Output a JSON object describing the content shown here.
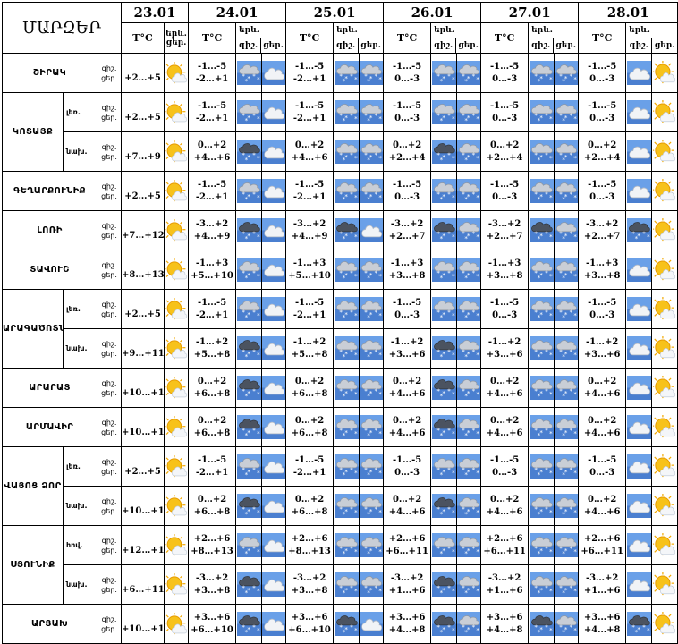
{
  "header": {
    "regions_title": "ՄԱՐԶԵՐ",
    "dates": [
      "23.01",
      "24.01",
      "25.01",
      "26.01",
      "27.01",
      "28.01"
    ],
    "temp_label": "T°C",
    "weather_label": "երև.",
    "night_label": "գիշ.",
    "day_label": "ցեր."
  },
  "rows": [
    {
      "region": "ՇԻՐԱԿ",
      "sub": "",
      "d0": "+2…+5",
      "n": [
        "-1…-5",
        "-1…-5",
        "-1…-5",
        "-1…-5",
        "-1…-5"
      ],
      "dd": [
        "-2…+1",
        "-2…+1",
        "0…-3",
        "0…-3",
        "0…-3"
      ]
    },
    {
      "region": "ԿՈՏԱՅՔ",
      "sub": "լեռ.",
      "d0": "+2…+5",
      "n": [
        "-1…-5",
        "-1…-5",
        "-1…-5",
        "-1…-5",
        "-1…-5"
      ],
      "dd": [
        "-2…+1",
        "-2…+1",
        "0…-3",
        "0…-3",
        "0…-3"
      ]
    },
    {
      "region": "",
      "sub": "նախ.",
      "d0": "+7…+9",
      "n": [
        "0…+2",
        "0…+2",
        "0…+2",
        "0…+2",
        "0…+2"
      ],
      "dd": [
        "+4…+6",
        "+4…+6",
        "+2…+4",
        "+2…+4",
        "+2…+4"
      ]
    },
    {
      "region": "ԳԵՂԱՐՔՈՒՆԻՔ",
      "sub": "",
      "d0": "+2…+5",
      "n": [
        "-1…-5",
        "-1…-5",
        "-1…-5",
        "-1…-5",
        "-1…-5"
      ],
      "dd": [
        "-2…+1",
        "-2…+1",
        "0…-3",
        "0…-3",
        "0…-3"
      ]
    },
    {
      "region": "ԼՈՌԻ",
      "sub": "",
      "d0": "+7…+12",
      "n": [
        "-3…+2",
        "-3…+2",
        "-3…+2",
        "-3…+2",
        "-3…+2"
      ],
      "dd": [
        "+4…+9",
        "+4…+9",
        "+2…+7",
        "+2…+7",
        "+2…+7"
      ]
    },
    {
      "region": "ՏԱՎՈՒՇ",
      "sub": "",
      "d0": "+8…+13",
      "n": [
        "-1…+3",
        "-1…+3",
        "-1…+3",
        "-1…+3",
        "-1…+3"
      ],
      "dd": [
        "+5…+10",
        "+5…+10",
        "+3…+8",
        "+3…+8",
        "+3…+8"
      ]
    },
    {
      "region": "ԱՐԱԳԱԾՈՏՆ",
      "sub": "լեռ.",
      "d0": "+2…+5",
      "n": [
        "-1…-5",
        "-1…-5",
        "-1…-5",
        "-1…-5",
        "-1…-5"
      ],
      "dd": [
        "-2…+1",
        "-2…+1",
        "0…-3",
        "0…-3",
        "0…-3"
      ]
    },
    {
      "region": "",
      "sub": "նախ.",
      "d0": "+9…+11",
      "n": [
        "-1…+2",
        "-1…+2",
        "-1…+2",
        "-1…+2",
        "-1…+2"
      ],
      "dd": [
        "+5…+8",
        "+5…+8",
        "+3…+6",
        "+3…+6",
        "+3…+6"
      ]
    },
    {
      "region": "ԱՐԱՐԱՏ",
      "sub": "",
      "d0": "+10…+12",
      "n": [
        "0…+2",
        "0…+2",
        "0…+2",
        "0…+2",
        "0…+2"
      ],
      "dd": [
        "+6…+8",
        "+6…+8",
        "+4…+6",
        "+4…+6",
        "+4…+6"
      ]
    },
    {
      "region": "ԱՐՄԱՎԻՐ",
      "sub": "",
      "d0": "+10…+12",
      "n": [
        "0…+2",
        "0…+2",
        "0…+2",
        "0…+2",
        "0…+2"
      ],
      "dd": [
        "+6…+8",
        "+6…+8",
        "+4…+6",
        "+4…+6",
        "+4…+6"
      ]
    },
    {
      "region": "ՎԱՅՈՑ ՁՈՐ",
      "sub": "լեռ.",
      "d0": "+2…+5",
      "n": [
        "-1…-5",
        "-1…-5",
        "-1…-5",
        "-1…-5",
        "-1…-5"
      ],
      "dd": [
        "-2…+1",
        "-2…+1",
        "0…-3",
        "0…-3",
        "0…-3"
      ]
    },
    {
      "region": "",
      "sub": "նախ.",
      "d0": "+10…+12",
      "n": [
        "0…+2",
        "0…+2",
        "0…+2",
        "0…+2",
        "0…+2"
      ],
      "dd": [
        "+6…+8",
        "+6…+8",
        "+4…+6",
        "+4…+6",
        "+4…+6"
      ]
    },
    {
      "region": "ՍՅՈՒՆԻՔ",
      "sub": "հով.",
      "d0": "+12…+17",
      "n": [
        "+2…+6",
        "+2…+6",
        "+2…+6",
        "+2…+6",
        "+2…+6"
      ],
      "dd": [
        "+8…+13",
        "+8…+13",
        "+6…+11",
        "+6…+11",
        "+6…+11"
      ]
    },
    {
      "region": "",
      "sub": "նախ.",
      "d0": "+6…+11",
      "n": [
        "-3…+2",
        "-3…+2",
        "-3…+2",
        "-3…+2",
        "-3…+2"
      ],
      "dd": [
        "+3…+8",
        "+3…+8",
        "+1…+6",
        "+1…+6",
        "+1…+6"
      ]
    },
    {
      "region": "ԱՐՑԱԽ",
      "sub": "",
      "d0": "+10…+13",
      "n": [
        "+3…+6",
        "+3…+6",
        "+3…+6",
        "+3…+6",
        "+3…+6"
      ],
      "dd": [
        "+6…+10",
        "+6…+10",
        "+4…+8",
        "+4…+8",
        "+4…+8"
      ]
    }
  ],
  "icon_names": {
    "sun": "partly-sunny-icon",
    "cloud": "cloudy-icon",
    "snow": "snow-cloud-icon",
    "storm": "dark-snow-cloud-icon"
  }
}
